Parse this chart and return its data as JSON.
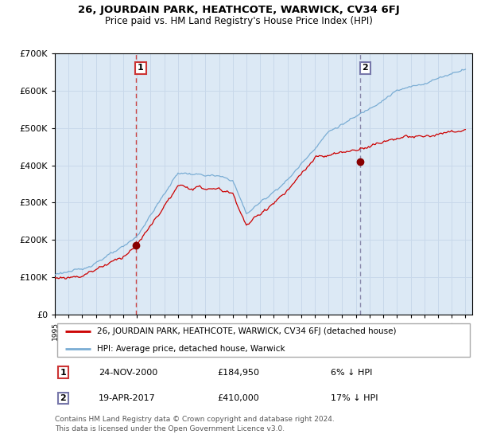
{
  "title": "26, JOURDAIN PARK, HEATHCOTE, WARWICK, CV34 6FJ",
  "subtitle": "Price paid vs. HM Land Registry's House Price Index (HPI)",
  "legend_label_red": "26, JOURDAIN PARK, HEATHCOTE, WARWICK, CV34 6FJ (detached house)",
  "legend_label_blue": "HPI: Average price, detached house, Warwick",
  "annotation1_date": "24-NOV-2000",
  "annotation1_price": "£184,950",
  "annotation1_hpi": "6% ↓ HPI",
  "annotation2_date": "19-APR-2017",
  "annotation2_price": "£410,000",
  "annotation2_hpi": "17% ↓ HPI",
  "footer": "Contains HM Land Registry data © Crown copyright and database right 2024.\nThis data is licensed under the Open Government Licence v3.0.",
  "start_year": 1995,
  "end_year": 2025,
  "ylim": [
    0,
    700000
  ],
  "yticks": [
    0,
    100000,
    200000,
    300000,
    400000,
    500000,
    600000,
    700000
  ],
  "hpi_color": "#7aadd4",
  "price_color": "#cc0000",
  "dot_color": "#880000",
  "vline1_color": "#cc4444",
  "vline2_color": "#8888aa",
  "bg_color": "#dce9f5",
  "grid_color": "#c8d8ea",
  "sale1_year": 2000.9,
  "sale2_year": 2017.3,
  "sale1_price": 184950,
  "sale2_price": 410000
}
